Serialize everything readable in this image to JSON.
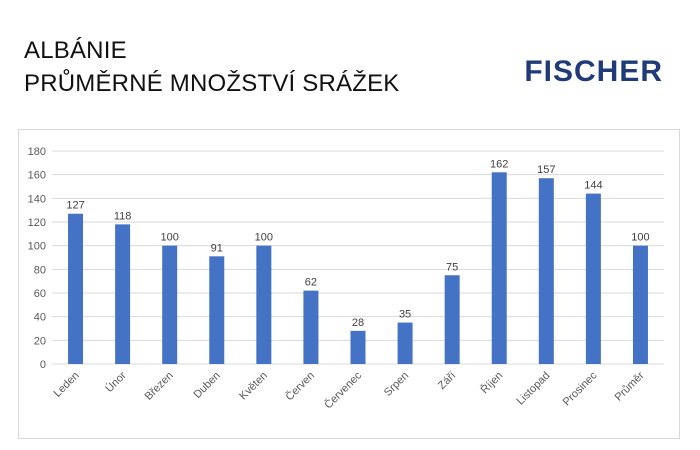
{
  "header": {
    "title_line1": "ALBÁNIE",
    "title_line2": "PRŮMĚRNÉ MNOŽSTVÍ SRÁŽEK",
    "logo_text": "FISCHER"
  },
  "colors": {
    "bar": "#4472c4",
    "logo": "#1f3b7a",
    "grid": "#d9d9d9"
  },
  "chart_data": {
    "type": "bar",
    "title": "",
    "xlabel": "",
    "ylabel": "",
    "ylim": [
      0,
      180
    ],
    "yticks": [
      0,
      20,
      40,
      60,
      80,
      100,
      120,
      140,
      160,
      180
    ],
    "grid": true,
    "categories": [
      "Leden",
      "Únor",
      "Březen",
      "Duben",
      "Květen",
      "Červen",
      "Červenec",
      "Srpen",
      "Září",
      "Říjen",
      "Listopad",
      "Prosinec",
      "Průměr"
    ],
    "values": [
      127,
      118,
      100,
      91,
      100,
      62,
      28,
      35,
      75,
      162,
      157,
      144,
      100
    ]
  }
}
